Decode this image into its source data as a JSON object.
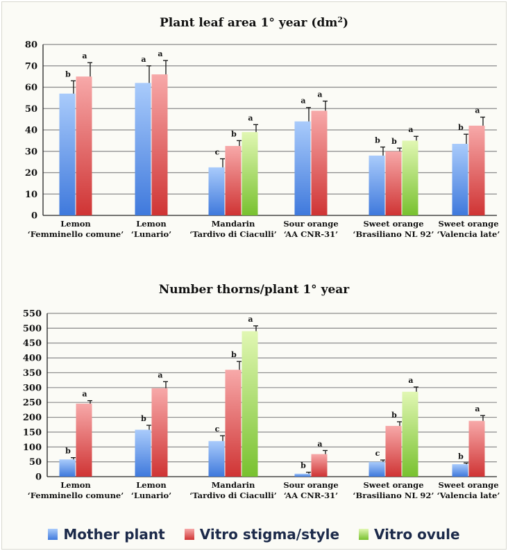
{
  "chart_data": [
    {
      "type": "bar",
      "title": "Plant leaf area 1° year (dm",
      "title_sup": "2",
      "title_end": ")",
      "categories": [
        [
          "Lemon",
          "‘Femminello comune’"
        ],
        [
          "Lemon",
          "‘Lunario’"
        ],
        [
          "Mandarin",
          "‘Tardivo di Ciaculli’"
        ],
        [
          "Sour orange",
          "‘AA CNR-31’"
        ],
        [
          "Sweet orange",
          "‘Brasiliano NL 92’"
        ],
        [
          "Sweet orange",
          "‘Valencia late’"
        ]
      ],
      "ylim": [
        0,
        80
      ],
      "ytick_step": 10,
      "grid": true,
      "series": [
        {
          "name": "Mother plant",
          "values": [
            57,
            62,
            22.5,
            44,
            28,
            33.5
          ],
          "errors": [
            6,
            8,
            4,
            6.5,
            4,
            4.5
          ],
          "letters": [
            "b",
            "a",
            "c",
            "a",
            "b",
            "b"
          ]
        },
        {
          "name": "Vitro stigma/style",
          "values": [
            65,
            66,
            32.5,
            49,
            30,
            42
          ],
          "errors": [
            6.5,
            6.5,
            2.5,
            4.5,
            1.5,
            4
          ],
          "letters": [
            "a",
            "a",
            "b",
            "a",
            "b",
            "a"
          ]
        },
        {
          "name": "Vitro ovule",
          "values": [
            null,
            null,
            39,
            null,
            35,
            null
          ],
          "errors": [
            null,
            null,
            3.5,
            null,
            2,
            null
          ],
          "letters": [
            null,
            null,
            "a",
            null,
            "a",
            null
          ]
        }
      ]
    },
    {
      "type": "bar",
      "title": "Number  thorns/plant 1° year",
      "categories": [
        [
          "Lemon",
          "‘Femminello comune’"
        ],
        [
          "Lemon",
          "‘Lunario’"
        ],
        [
          "Mandarin",
          "‘Tardivo di Ciaculli’"
        ],
        [
          "Sour orange",
          "‘AA CNR-31’"
        ],
        [
          "Sweet orange",
          "‘Brasiliano NL 92’"
        ],
        [
          "Sweet orange",
          "‘Valencia late’"
        ]
      ],
      "ylim": [
        0,
        550
      ],
      "ytick_step": 50,
      "grid": true,
      "series": [
        {
          "name": "Mother plant",
          "values": [
            58,
            158,
            120,
            10,
            50,
            42
          ],
          "errors": [
            6,
            15,
            18,
            5,
            6,
            4
          ],
          "letters": [
            "b",
            "b",
            "c",
            "b",
            "c",
            "b"
          ]
        },
        {
          "name": "Vitro stigma/style",
          "values": [
            246,
            298,
            360,
            76,
            171,
            188
          ],
          "errors": [
            10,
            22,
            28,
            12,
            14,
            18
          ],
          "letters": [
            "a",
            "a",
            "b",
            "a",
            "b",
            "a"
          ]
        },
        {
          "name": "Vitro ovule",
          "values": [
            null,
            null,
            490,
            null,
            286,
            null
          ],
          "errors": [
            null,
            null,
            18,
            null,
            16,
            null
          ],
          "letters": [
            null,
            null,
            "a",
            null,
            "a",
            null
          ]
        }
      ]
    }
  ],
  "legend": {
    "items": [
      {
        "label": "Mother plant",
        "color": "#5f97ea"
      },
      {
        "label": "Vitro stigma/style",
        "color": "#e95757"
      },
      {
        "label": "Vitro ovule",
        "color": "#9fd651"
      }
    ]
  },
  "colors": {
    "mother_top": "#a9cbfb",
    "mother_bottom": "#3f79dc",
    "stigma_top": "#f7a9a9",
    "stigma_bottom": "#cf3434",
    "ovule_top": "#e1f7b3",
    "ovule_bottom": "#78c12f"
  }
}
